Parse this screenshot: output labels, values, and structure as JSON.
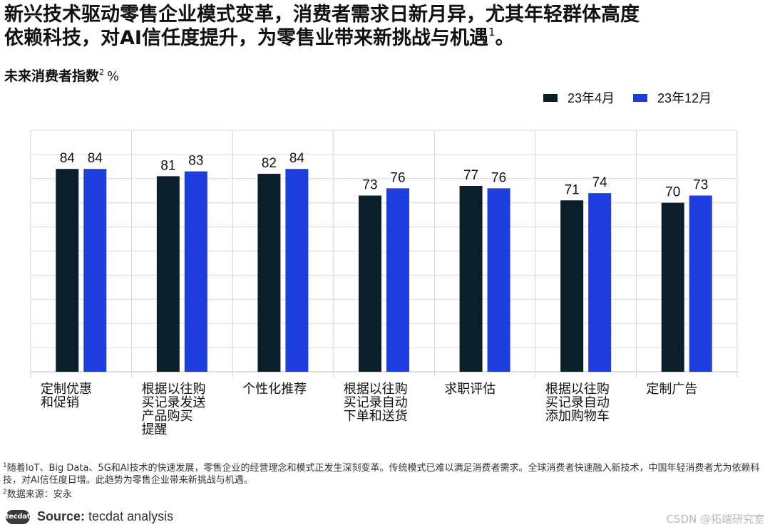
{
  "headline": {
    "line1": "新兴技术驱动零售企业模式变革，消费者需求日新月异，尤其年轻群体高度",
    "line2": "依赖科技，对AI信任度提升，为零售业带来新挑战与机遇",
    "sup": "1",
    "end": "。"
  },
  "subtitle": {
    "text": "未来消费者指数",
    "sup": "2",
    "unit": "%"
  },
  "legend": {
    "items": [
      {
        "label": "23年4月",
        "color": "#0b1f2a"
      },
      {
        "label": "23年12月",
        "color": "#1e3ddf"
      }
    ]
  },
  "chart_data": {
    "type": "bar",
    "title": "未来消费者指数",
    "ylabel": "%",
    "ylim": [
      0,
      100
    ],
    "gridlines": true,
    "legend_position": "top-right",
    "categories": [
      [
        "定制优惠",
        "和促销"
      ],
      [
        "根据以往购",
        "买记录发送",
        "产品购买",
        "提醒"
      ],
      [
        "个性化推荐"
      ],
      [
        "根据以往购",
        "买记录自动",
        "下单和送货"
      ],
      [
        "求职评估"
      ],
      [
        "根据以往购",
        "买记录自动",
        "添加购物车"
      ],
      [
        "定制广告"
      ]
    ],
    "series": [
      {
        "name": "23年4月",
        "color": "#0b1f2a",
        "values": [
          84,
          81,
          82,
          73,
          77,
          71,
          70
        ]
      },
      {
        "name": "23年12月",
        "color": "#1e3ddf",
        "values": [
          84,
          83,
          84,
          76,
          76,
          74,
          73
        ]
      }
    ]
  },
  "footnotes": {
    "note1_sup": "1",
    "note1": "随着IoT、Big Data、5G和AI技术的快速发展，零售企业的经营理念和模式正发生深刻变革。传统模式已难以满足消费者需求。全球消费者快速融入新技术，中国年轻消费者尤为依赖科技，对AI信任度日增。此趋势为零售企业带来新挑战与机遇。",
    "note2_sup": "2",
    "note2": "数据来源：安永"
  },
  "source": {
    "logo": "tecdat",
    "label": "Source:",
    "text": " tecdat analysis"
  },
  "watermark": "CSDN @拓端研究室"
}
